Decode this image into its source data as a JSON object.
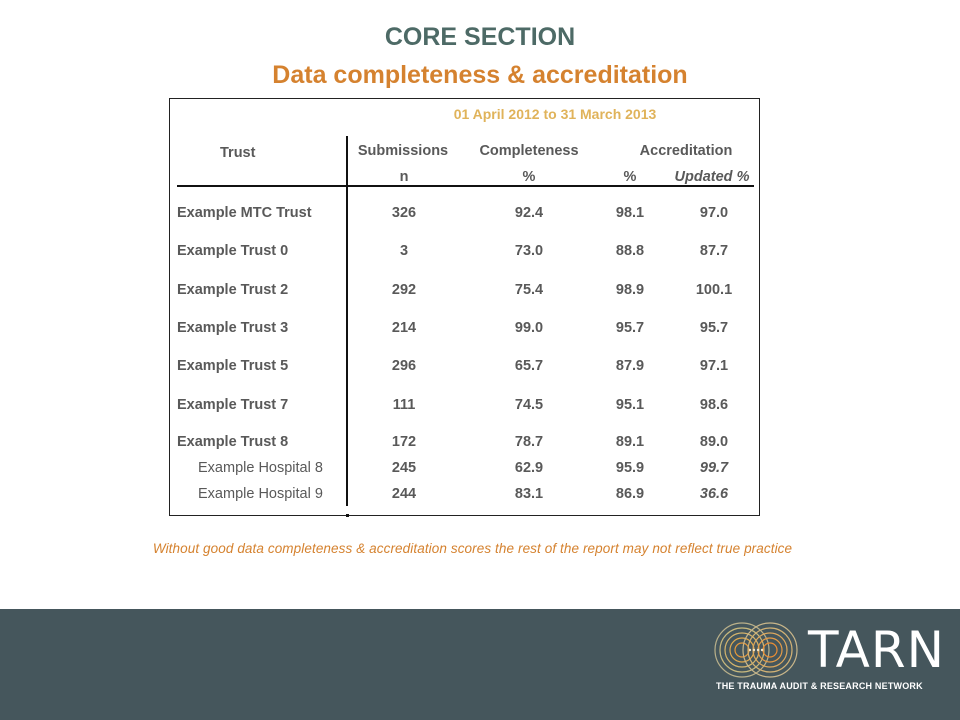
{
  "slide": {
    "section_title": "CORE SECTION",
    "subtitle": "Data completeness & accreditation",
    "footnote": "Without good data completeness & accreditation scores the rest of the report may not reflect true practice"
  },
  "table": {
    "period": "01 April 2012 to 31 March 2013",
    "headers": {
      "trust": "Trust",
      "submissions": "Submissions",
      "submissions_unit": "n",
      "completeness": "Completeness",
      "completeness_unit": "%",
      "accreditation": "Accreditation",
      "accreditation_unit": "%",
      "updated_unit": "Updated %"
    },
    "rows": [
      {
        "name": "Example MTC Trust",
        "n": "326",
        "completeness": "92.4",
        "accreditation": "98.1",
        "updated": "97.0"
      },
      {
        "name": "Example Trust 0",
        "n": "3",
        "completeness": "73.0",
        "accreditation": "88.8",
        "updated": "87.7"
      },
      {
        "name": "Example Trust 2",
        "n": "292",
        "completeness": "75.4",
        "accreditation": "98.9",
        "updated": "100.1"
      },
      {
        "name": "Example Trust 3",
        "n": "214",
        "completeness": "99.0",
        "accreditation": "95.7",
        "updated": "95.7"
      },
      {
        "name": "Example Trust 5",
        "n": "296",
        "completeness": "65.7",
        "accreditation": "87.9",
        "updated": "97.1"
      },
      {
        "name": "Example Trust 7",
        "n": "111",
        "completeness": "74.5",
        "accreditation": "95.1",
        "updated": "98.6"
      },
      {
        "name": "Example Trust 8",
        "n": "172",
        "completeness": "78.7",
        "accreditation": "89.1",
        "updated": "89.0"
      },
      {
        "name": "Example Hospital 8",
        "n": "245",
        "completeness": "62.9",
        "accreditation": "95.9",
        "updated": "99.7"
      },
      {
        "name": "Example Hospital 9",
        "n": "244",
        "completeness": "83.1",
        "accreditation": "86.9",
        "updated": "36.6"
      }
    ]
  },
  "footer": {
    "logo_text": "TARN",
    "logo_tagline": "THE TRAUMA AUDIT & RESEARCH NETWORK",
    "logo_icon": "concentric-circles-logo-icon"
  }
}
